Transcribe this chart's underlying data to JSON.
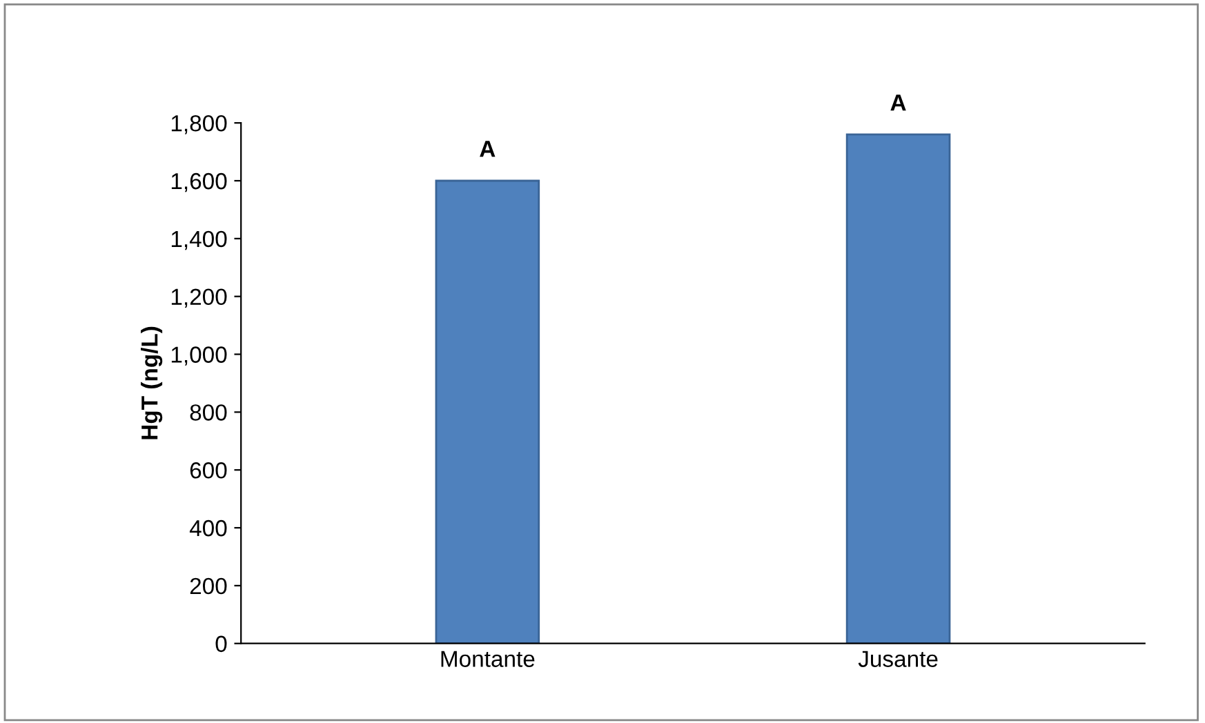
{
  "chart_data": {
    "type": "bar",
    "ylabel": "HgT (ng/L)",
    "categories": [
      "Montante",
      "Jusante"
    ],
    "values": [
      1600,
      1760
    ],
    "color": "#4f81bd",
    "ylim": [
      0,
      1800
    ],
    "yticks": [
      {
        "value": 0,
        "label": "0"
      },
      {
        "value": 200,
        "label": "200"
      },
      {
        "value": 400,
        "label": "400"
      },
      {
        "value": 600,
        "label": "600"
      },
      {
        "value": 800,
        "label": "800"
      },
      {
        "value": 1000,
        "label": "1,000"
      },
      {
        "value": 1200,
        "label": "1,200"
      },
      {
        "value": 1400,
        "label": "1,400"
      },
      {
        "value": 1600,
        "label": "1,600"
      },
      {
        "value": 1800,
        "label": "1,800"
      }
    ],
    "annotations": [
      {
        "text": "A",
        "x": "Montante",
        "y": 1600
      },
      {
        "text": "A",
        "x": "Jusante",
        "y": 1760
      }
    ],
    "grid": false,
    "legend": false
  }
}
